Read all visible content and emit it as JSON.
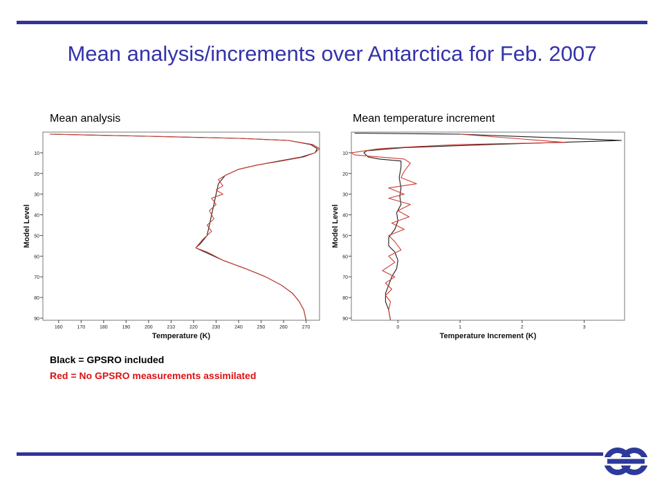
{
  "slide": {
    "title": "Mean analysis/increments over Antarctica for Feb. 2007",
    "caption_left": "Mean analysis",
    "caption_right": "Mean temperature increment",
    "legend_black": "Black = GPSRO included",
    "legend_red": "Red = No GPSRO measurements assimilated"
  },
  "colors": {
    "rule": "#33339a",
    "title": "#3333aa",
    "black_series": "#1a1a1a",
    "red_series": "#cc3a2e",
    "legend_red": "#dd1111",
    "logo": "#2d3a9a"
  },
  "chart_data": [
    {
      "type": "line",
      "orientation": "vertical-profile",
      "xlabel": "Temperature (K)",
      "ylabel": "Model Level",
      "xlim": [
        153,
        276
      ],
      "ylim": [
        91,
        0
      ],
      "xticks": [
        160,
        170,
        180,
        190,
        200,
        210,
        220,
        230,
        240,
        250,
        260,
        270
      ],
      "yticks": [
        10,
        20,
        30,
        40,
        50,
        60,
        70,
        80,
        90
      ],
      "series": [
        {
          "color": "black",
          "points": [
            [
              156,
              1
            ],
            [
              200,
              2
            ],
            [
              240,
              3
            ],
            [
              262,
              4
            ],
            [
              272,
              6
            ],
            [
              275,
              8
            ],
            [
              274,
              10
            ],
            [
              268,
              12
            ],
            [
              258,
              14
            ],
            [
              248,
              16
            ],
            [
              240,
              18
            ],
            [
              234,
              21
            ],
            [
              231,
              25
            ],
            [
              230,
              30
            ],
            [
              229,
              35
            ],
            [
              228,
              40
            ],
            [
              227,
              45
            ],
            [
              226,
              50
            ],
            [
              223,
              54
            ],
            [
              221,
              56
            ],
            [
              225,
              58
            ],
            [
              233,
              62
            ],
            [
              243,
              66
            ],
            [
              252,
              70
            ],
            [
              259,
              74
            ],
            [
              264,
              78
            ],
            [
              267,
              82
            ],
            [
              269,
              86
            ],
            [
              270,
              91
            ]
          ]
        },
        {
          "color": "red",
          "points": [
            [
              156,
              1
            ],
            [
              200,
              2
            ],
            [
              240,
              3
            ],
            [
              262,
              4
            ],
            [
              273,
              6
            ],
            [
              276,
              8
            ],
            [
              274,
              10
            ],
            [
              269,
              12
            ],
            [
              259,
              14
            ],
            [
              248,
              16
            ],
            [
              240,
              18
            ],
            [
              234,
              21
            ],
            [
              231,
              23
            ],
            [
              233,
              26
            ],
            [
              230,
              28
            ],
            [
              233,
              30
            ],
            [
              228,
              32
            ],
            [
              230,
              35
            ],
            [
              227,
              38
            ],
            [
              229,
              42
            ],
            [
              226,
              45
            ],
            [
              228,
              48
            ],
            [
              224,
              52
            ],
            [
              221,
              56
            ],
            [
              226,
              58
            ],
            [
              233,
              62
            ],
            [
              243,
              66
            ],
            [
              252,
              70
            ],
            [
              259,
              74
            ],
            [
              264,
              78
            ],
            [
              267,
              82
            ],
            [
              269,
              86
            ],
            [
              270,
              91
            ]
          ]
        }
      ]
    },
    {
      "type": "line",
      "orientation": "vertical-profile",
      "xlabel": "Temperature Increment (K)",
      "ylabel": "Model Level",
      "xlim": [
        -0.75,
        3.65
      ],
      "ylim": [
        91,
        0
      ],
      "xticks": [
        0,
        1,
        2,
        3
      ],
      "yticks": [
        10,
        20,
        30,
        40,
        50,
        60,
        70,
        80,
        90
      ],
      "series": [
        {
          "color": "black",
          "points": [
            [
              -0.7,
              0.5
            ],
            [
              1.0,
              1
            ],
            [
              3.6,
              4
            ],
            [
              1.5,
              6
            ],
            [
              0.1,
              7.5
            ],
            [
              -0.5,
              9
            ],
            [
              -0.55,
              10
            ],
            [
              -0.48,
              12
            ],
            [
              -0.3,
              13
            ],
            [
              0.05,
              14
            ],
            [
              0.05,
              17
            ],
            [
              0.02,
              22
            ],
            [
              0.05,
              27
            ],
            [
              0.03,
              31
            ],
            [
              0.05,
              35
            ],
            [
              -0.02,
              39
            ],
            [
              0.0,
              43
            ],
            [
              -0.05,
              47
            ],
            [
              -0.15,
              51
            ],
            [
              -0.15,
              55
            ],
            [
              -0.05,
              58
            ],
            [
              0.0,
              62
            ],
            [
              -0.02,
              66
            ],
            [
              -0.1,
              70
            ],
            [
              -0.15,
              74
            ],
            [
              -0.2,
              78
            ],
            [
              -0.2,
              82
            ],
            [
              -0.15,
              86
            ],
            [
              -0.12,
              91
            ]
          ]
        },
        {
          "color": "red",
          "points": [
            [
              1.0,
              1
            ],
            [
              2.7,
              5
            ],
            [
              1.0,
              6
            ],
            [
              0.3,
              7
            ],
            [
              -0.3,
              8
            ],
            [
              -0.75,
              10
            ],
            [
              -0.7,
              11
            ],
            [
              -0.3,
              12
            ],
            [
              0.1,
              13
            ],
            [
              0.2,
              15
            ],
            [
              0.1,
              19
            ],
            [
              0.05,
              22
            ],
            [
              0.3,
              25
            ],
            [
              -0.15,
              27
            ],
            [
              0.1,
              30
            ],
            [
              -0.15,
              32
            ],
            [
              0.2,
              35
            ],
            [
              0.0,
              38
            ],
            [
              0.18,
              41
            ],
            [
              -0.1,
              44
            ],
            [
              0.1,
              47
            ],
            [
              -0.15,
              50
            ],
            [
              -0.05,
              53
            ],
            [
              0.05,
              57
            ],
            [
              -0.15,
              60
            ],
            [
              -0.05,
              63
            ],
            [
              -0.25,
              67
            ],
            [
              -0.05,
              70
            ],
            [
              -0.2,
              73
            ],
            [
              -0.1,
              76
            ],
            [
              -0.2,
              79
            ],
            [
              -0.12,
              82
            ],
            [
              -0.15,
              86
            ],
            [
              -0.12,
              91
            ]
          ]
        }
      ]
    }
  ]
}
